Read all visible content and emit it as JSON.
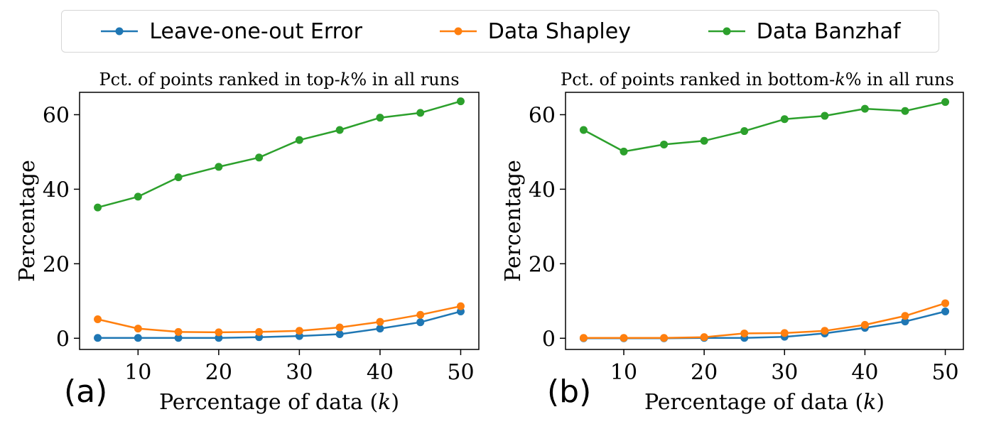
{
  "legend": [
    {
      "name": "Leave-one-out Error",
      "color": "#1f77b4"
    },
    {
      "name": "Data Shapley",
      "color": "#ff7f0e"
    },
    {
      "name": "Data Banzhaf",
      "color": "#2ca02c"
    }
  ],
  "panels": {
    "a": {
      "label": "(a)"
    },
    "b": {
      "label": "(b)"
    }
  },
  "chart_data": [
    {
      "type": "line",
      "title": "Pct. of points ranked in top-k% in all runs",
      "title_parts": {
        "pre": "Pct. of points ranked in top-",
        "italic": "k",
        "post": "% in all runs"
      },
      "xlabel": "Percentage of data (k)",
      "xlabel_parts": {
        "pre": "Percentage of data (",
        "italic": "k",
        "post": ")"
      },
      "ylabel": "Percentage",
      "x": [
        5,
        10,
        15,
        20,
        25,
        30,
        35,
        40,
        45,
        50
      ],
      "xlim": [
        2.75,
        52.25
      ],
      "ylim": [
        -3,
        66
      ],
      "xticks": [
        10,
        20,
        30,
        40,
        50
      ],
      "yticks": [
        0,
        20,
        40,
        60
      ],
      "series": [
        {
          "name": "Leave-one-out Error",
          "color": "#1f77b4",
          "values": [
            0.1,
            0.1,
            0.1,
            0.1,
            0.3,
            0.6,
            1.1,
            2.6,
            4.3,
            7.2
          ]
        },
        {
          "name": "Data Shapley",
          "color": "#ff7f0e",
          "values": [
            5.1,
            2.6,
            1.7,
            1.6,
            1.7,
            2.0,
            2.9,
            4.4,
            6.3,
            8.6
          ]
        },
        {
          "name": "Data Banzhaf",
          "color": "#2ca02c",
          "values": [
            35.1,
            38.0,
            43.2,
            46.0,
            48.5,
            53.2,
            55.9,
            59.2,
            60.5,
            63.6
          ]
        }
      ]
    },
    {
      "type": "line",
      "title": "Pct. of points ranked in bottom-k% in all runs",
      "title_parts": {
        "pre": "Pct. of points ranked in bottom-",
        "italic": "k",
        "post": "% in all runs"
      },
      "xlabel": "Percentage of data (k)",
      "xlabel_parts": {
        "pre": "Percentage of data (",
        "italic": "k",
        "post": ")"
      },
      "ylabel": "Percentage",
      "x": [
        5,
        10,
        15,
        20,
        25,
        30,
        35,
        40,
        45,
        50
      ],
      "xlim": [
        2.75,
        52.25
      ],
      "ylim": [
        -3,
        66
      ],
      "xticks": [
        10,
        20,
        30,
        40,
        50
      ],
      "yticks": [
        0,
        20,
        40,
        60
      ],
      "series": [
        {
          "name": "Leave-one-out Error",
          "color": "#1f77b4",
          "values": [
            0.0,
            0.0,
            0.0,
            0.1,
            0.1,
            0.4,
            1.3,
            2.8,
            4.5,
            7.2
          ]
        },
        {
          "name": "Data Shapley",
          "color": "#ff7f0e",
          "values": [
            0.1,
            0.1,
            0.1,
            0.3,
            1.3,
            1.4,
            2.0,
            3.6,
            6.0,
            9.4
          ]
        },
        {
          "name": "Data Banzhaf",
          "color": "#2ca02c",
          "values": [
            55.9,
            50.1,
            52.0,
            53.0,
            55.6,
            58.8,
            59.7,
            61.6,
            61.0,
            63.4
          ]
        }
      ]
    }
  ]
}
